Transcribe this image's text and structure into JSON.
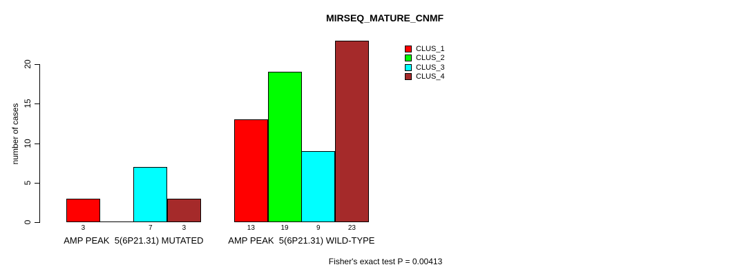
{
  "chart_data": {
    "type": "bar",
    "title": "MIRSEQ_MATURE_CNMF",
    "ylabel": "number of cases",
    "xlabel": "",
    "ylim": [
      0,
      23
    ],
    "yticks": [
      0,
      5,
      10,
      15,
      20
    ],
    "grid": false,
    "legend_position": "top-right",
    "series": [
      {
        "name": "CLUS_1",
        "color": "#ff0000"
      },
      {
        "name": "CLUS_2",
        "color": "#00ff00"
      },
      {
        "name": "CLUS_3",
        "color": "#00ffff"
      },
      {
        "name": "CLUS_4",
        "color": "#a52a2a"
      }
    ],
    "groups": [
      {
        "label": "AMP PEAK  5(6P21.31) MUTATED",
        "values": [
          3,
          0,
          7,
          3
        ],
        "bar_value_labels": [
          "3",
          "",
          "7",
          "3"
        ]
      },
      {
        "label": "AMP PEAK  5(6P21.31) WILD-TYPE",
        "values": [
          13,
          19,
          9,
          23
        ],
        "bar_value_labels": [
          "13",
          "19",
          "9",
          "23"
        ]
      }
    ],
    "annotation": "Fisher's exact test P = 0.00413"
  },
  "colors": {
    "background": "#ffffff",
    "axis": "#000000",
    "text": "#000000"
  }
}
